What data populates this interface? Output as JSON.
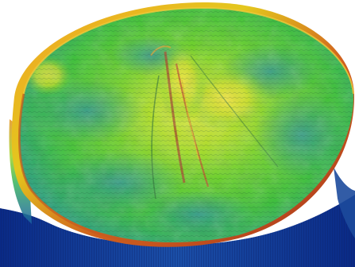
{
  "image": {
    "subject": "3d-terrain-surface",
    "colormap": [
      "#0b2f7a",
      "#1f6fa8",
      "#2ea38e",
      "#3cc94a",
      "#9ede1f",
      "#e6e21b",
      "#e08a1d",
      "#c0392b"
    ],
    "background_color": "#ffffff"
  }
}
